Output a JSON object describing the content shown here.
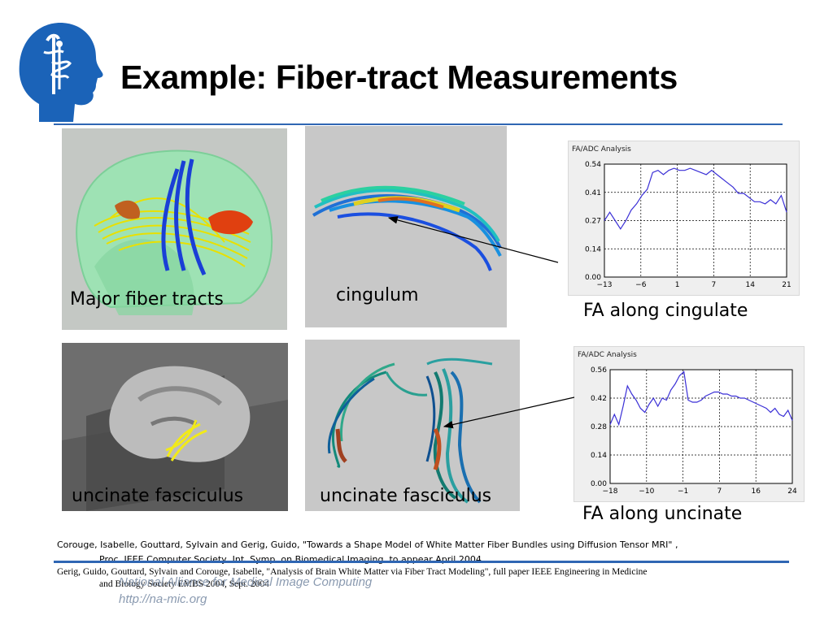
{
  "slide": {
    "title": "Example: Fiber-tract Measurements",
    "colors": {
      "accent": "#2f66b3",
      "logo_blue": "#1b63b8",
      "plot_line": "#3a2fd6"
    }
  },
  "logo": {
    "icon": "head-caduceus-logo"
  },
  "panels": {
    "major": {
      "caption": "Major fiber tracts"
    },
    "cingulum": {
      "caption": "cingulum"
    },
    "uncinate_slice": {
      "caption": "uncinate fasciculus"
    },
    "uncinate_tracts": {
      "caption": "uncinate fasciculus"
    }
  },
  "plots": {
    "cingulate": {
      "window_title": "FA/ADC Analysis",
      "caption": "FA along cingulate",
      "chart_data": {
        "type": "line",
        "title": "FA/ADC Analysis",
        "x_ticks": [
          "−13",
          "−6",
          "1",
          "7",
          "14",
          "21"
        ],
        "y_ticks": [
          "0.54",
          "0.41",
          "0.27",
          "0.14",
          "0.00"
        ],
        "xlim": [
          -13,
          21
        ],
        "ylim": [
          0,
          0.54
        ],
        "grid": true,
        "x": [
          -13,
          -12,
          -11,
          -10,
          -9,
          -8,
          -7,
          -6,
          -5,
          -4,
          -3,
          -2,
          -1,
          0,
          1,
          2,
          3,
          4,
          5,
          6,
          7,
          8,
          9,
          10,
          11,
          12,
          13,
          14,
          15,
          16,
          17,
          18,
          19,
          20,
          21
        ],
        "values": [
          0.27,
          0.31,
          0.27,
          0.23,
          0.27,
          0.32,
          0.35,
          0.39,
          0.42,
          0.5,
          0.51,
          0.49,
          0.51,
          0.52,
          0.51,
          0.51,
          0.52,
          0.51,
          0.5,
          0.49,
          0.51,
          0.49,
          0.47,
          0.45,
          0.43,
          0.4,
          0.4,
          0.38,
          0.36,
          0.36,
          0.35,
          0.37,
          0.35,
          0.39,
          0.31
        ]
      }
    },
    "uncinate": {
      "window_title": "FA/ADC Analysis",
      "caption": "FA along uncinate",
      "chart_data": {
        "type": "line",
        "title": "FA/ADC Analysis",
        "x_ticks": [
          "−18",
          "−10",
          "−1",
          "7",
          "16",
          "24"
        ],
        "y_ticks": [
          "0.56",
          "0.42",
          "0.28",
          "0.14",
          "0.00"
        ],
        "xlim": [
          -18,
          24
        ],
        "ylim": [
          0,
          0.56
        ],
        "grid": true,
        "x": [
          -18,
          -17,
          -16,
          -15,
          -14,
          -13,
          -12,
          -11,
          -10,
          -9,
          -8,
          -7,
          -6,
          -5,
          -4,
          -3,
          -2,
          -1,
          0,
          1,
          2,
          3,
          4,
          5,
          6,
          7,
          8,
          9,
          10,
          11,
          12,
          13,
          14,
          15,
          16,
          17,
          18,
          19,
          20,
          21,
          22,
          23,
          24
        ],
        "values": [
          0.29,
          0.34,
          0.29,
          0.38,
          0.48,
          0.44,
          0.41,
          0.37,
          0.35,
          0.39,
          0.42,
          0.38,
          0.42,
          0.41,
          0.46,
          0.49,
          0.53,
          0.55,
          0.41,
          0.4,
          0.4,
          0.41,
          0.43,
          0.44,
          0.45,
          0.45,
          0.44,
          0.44,
          0.43,
          0.43,
          0.42,
          0.42,
          0.41,
          0.4,
          0.39,
          0.38,
          0.37,
          0.35,
          0.37,
          0.34,
          0.33,
          0.36,
          0.31
        ]
      }
    }
  },
  "references": [
    {
      "line1": "Corouge, Isabelle, Gouttard, Sylvain and Gerig, Guido, \"Towards a Shape Model of White Matter Fiber Bundles using Diffusion Tensor MRI\" ,",
      "line2": "Proc. IEEE Computer Society, Int. Symp. on Biomedical Imaging, to appear April 2004"
    },
    {
      "line1": "Gerig, Guido, Gouttard, Sylvain and Corouge, Isabelle, \"Analysis of Brain White Matter via Fiber Tract Modeling\", full paper IEEE Engineering in Medicine",
      "line2": "and Biology Society EMBS 2004, Sept. 2004"
    }
  ],
  "footer": {
    "org": "National Alliance for Medical Image Computing",
    "url": "http://na-mic.org"
  }
}
